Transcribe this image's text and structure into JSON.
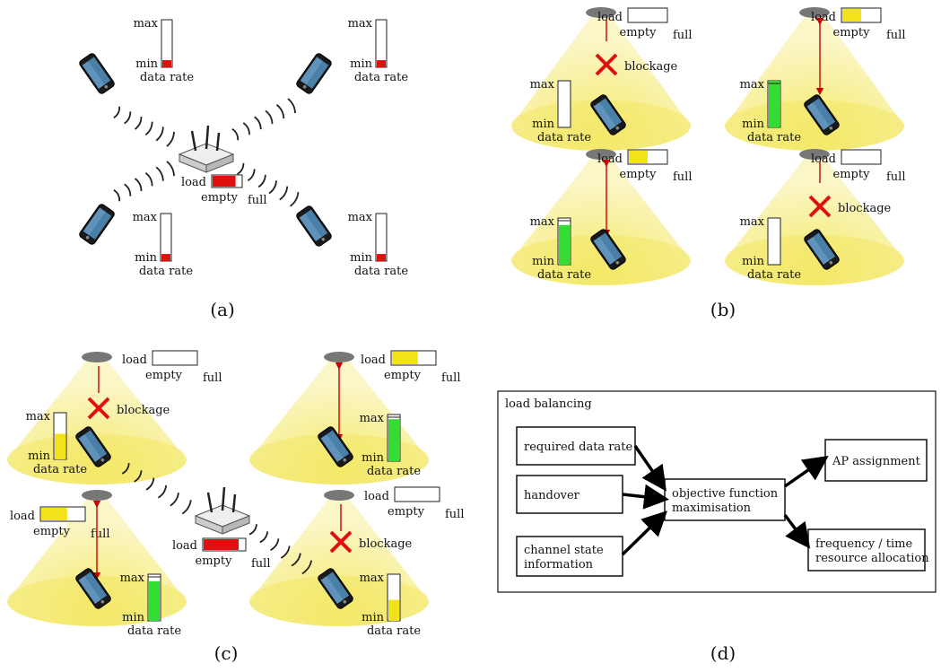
{
  "labels": {
    "max": "max",
    "min": "min",
    "data_rate": "data rate",
    "load": "load",
    "empty": "empty",
    "full": "full",
    "blockage": "blockage"
  },
  "captions": {
    "a": "(a)",
    "b": "(b)",
    "c": "(c)",
    "d": "(d)"
  },
  "panel_a": {
    "router_load_fraction": 0.8,
    "device_rates": [
      0.15,
      0.15,
      0.15,
      0.15
    ]
  },
  "panel_b": {
    "cells": [
      {
        "load_fraction": 0.0,
        "blocked": true,
        "rate_fraction": 0.0,
        "rate_color": "#ffffff"
      },
      {
        "load_fraction": 0.5,
        "blocked": false,
        "rate_fraction": 1.0,
        "rate_color": "#33dd33"
      },
      {
        "load_fraction": 0.5,
        "blocked": false,
        "rate_fraction": 0.85,
        "rate_color": "#33dd33"
      },
      {
        "load_fraction": 0.0,
        "blocked": true,
        "rate_fraction": 0.0,
        "rate_color": "#ffffff"
      }
    ]
  },
  "panel_c": {
    "router_load_fraction": 0.85,
    "cells": [
      {
        "load_fraction": 0.0,
        "blocked": true,
        "rate_fraction": 0.55,
        "rate_color": "#f2e21a"
      },
      {
        "load_fraction": 0.6,
        "blocked": false,
        "rate_fraction": 0.9,
        "rate_color": "#33dd33"
      },
      {
        "load_fraction": 0.6,
        "blocked": false,
        "rate_fraction": 0.85,
        "rate_color": "#33dd33"
      },
      {
        "load_fraction": 0.0,
        "blocked": true,
        "rate_fraction": 0.45,
        "rate_color": "#f2e21a"
      }
    ]
  },
  "panel_d": {
    "title": "load balancing",
    "inputs": [
      "required data rate",
      "handover",
      "channel state information"
    ],
    "center": [
      "objective function",
      "maximisation"
    ],
    "outputs": [
      "AP assignment",
      "frequency / time resource allocation"
    ],
    "input_lines": [
      [
        "required data rate"
      ],
      [
        "handover"
      ],
      [
        "channel state",
        "information"
      ]
    ],
    "output_lines": [
      [
        "AP assignment"
      ],
      [
        "frequency / time",
        "resource allocation"
      ]
    ]
  },
  "colors": {
    "red": "#e01010",
    "green": "#33dd33",
    "yellow": "#f2e21a",
    "cone": "#f7f0a0",
    "lamp": "#777777",
    "beam": "#cc0000"
  }
}
